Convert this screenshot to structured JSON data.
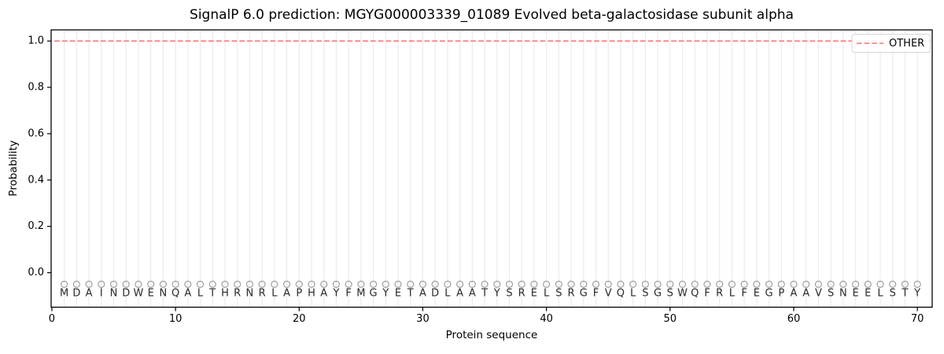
{
  "chart_data": {
    "type": "line",
    "title": "SignalP 6.0 prediction: MGYG000003339_01089 Evolved beta-galactosidase subunit alpha",
    "xlabel": "Protein sequence",
    "ylabel": "Probability",
    "xlim": [
      -0.06,
      71.2
    ],
    "ylim": [
      -0.149,
      1.048
    ],
    "xticks": [
      0,
      10,
      20,
      30,
      40,
      50,
      60,
      70
    ],
    "yticks": [
      0.0,
      0.2,
      0.4,
      0.6,
      0.8,
      1.0
    ],
    "grid": {
      "vertical_per_residue": true,
      "horizontal": false,
      "color": "#ebebeb"
    },
    "series": [
      {
        "name": "OTHER",
        "shape": "constant-horizontal-line",
        "y": 1.0,
        "x_start": 0.2,
        "x_end": 71.2,
        "color": "#f28686",
        "linestyle": "dashed"
      }
    ],
    "legend": {
      "position": "upper right",
      "entries": [
        "OTHER"
      ]
    },
    "sequence": {
      "residues": "MDAINDWENQALTHRNRLAPHAYFMGYETADLAATYSRELSRGFVQLSGSWQFRLFEGPAAVSNEELSTY",
      "length": 70,
      "positions": "1-70",
      "marker": "open-circle",
      "marker_y": -0.05,
      "label_y": -0.09
    },
    "colors": {
      "frame": "#000000",
      "tick_label": "#000000",
      "marker_stroke": "#9e9e9e",
      "residue_letter": "#2a2a2a",
      "line_other": "#f28686",
      "legend_border": "#d5d5d5",
      "legend_bg": "#ffffff"
    }
  }
}
